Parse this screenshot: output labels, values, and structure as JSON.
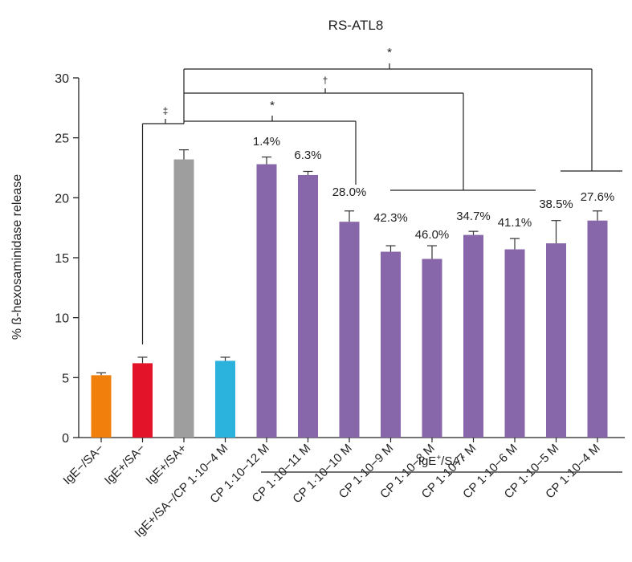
{
  "chart_data": {
    "type": "bar",
    "title": "RS-ATL8",
    "ylabel": "% ß-hexosaminidase release",
    "ylim": [
      0,
      30
    ],
    "yticks": [
      0,
      5,
      10,
      15,
      20,
      25,
      30
    ],
    "group_label": "IgE+/SA+",
    "categories": [
      "IgE−/SA−",
      "IgE+/SA−",
      "IgE+/SA+",
      "IgE+/SA−/CP 1·10−4 M",
      "CP 1·10−12 M",
      "CP 1·10−11 M",
      "CP 1·10−10 M",
      "CP 1·10−9 M",
      "CP 1·10−8 M",
      "CP 1·10−7 M",
      "CP 1·10−6 M",
      "CP 1·10−5 M",
      "CP 1·10−4 M"
    ],
    "values": [
      5.2,
      6.2,
      23.2,
      6.4,
      22.8,
      21.9,
      18.0,
      15.5,
      14.9,
      16.9,
      15.7,
      16.2,
      18.1
    ],
    "errors": [
      0.2,
      0.5,
      0.8,
      0.3,
      0.6,
      0.3,
      0.9,
      0.5,
      1.1,
      0.3,
      0.9,
      1.9,
      0.8
    ],
    "colors": [
      "#f07f0c",
      "#e3132a",
      "#9e9e9e",
      "#2bb3dd",
      "#8866aa",
      "#8866aa",
      "#8866aa",
      "#8866aa",
      "#8866aa",
      "#8866aa",
      "#8866aa",
      "#8866aa",
      "#8866aa"
    ],
    "inhibition_labels": [
      "",
      "",
      "",
      "",
      "1.4%",
      "6.3%",
      "28.0%",
      "42.3%",
      "46.0%",
      "34.7%",
      "41.1%",
      "38.5%",
      "27.6%"
    ],
    "significance": [
      "‡",
      "*",
      "†",
      "*"
    ]
  }
}
